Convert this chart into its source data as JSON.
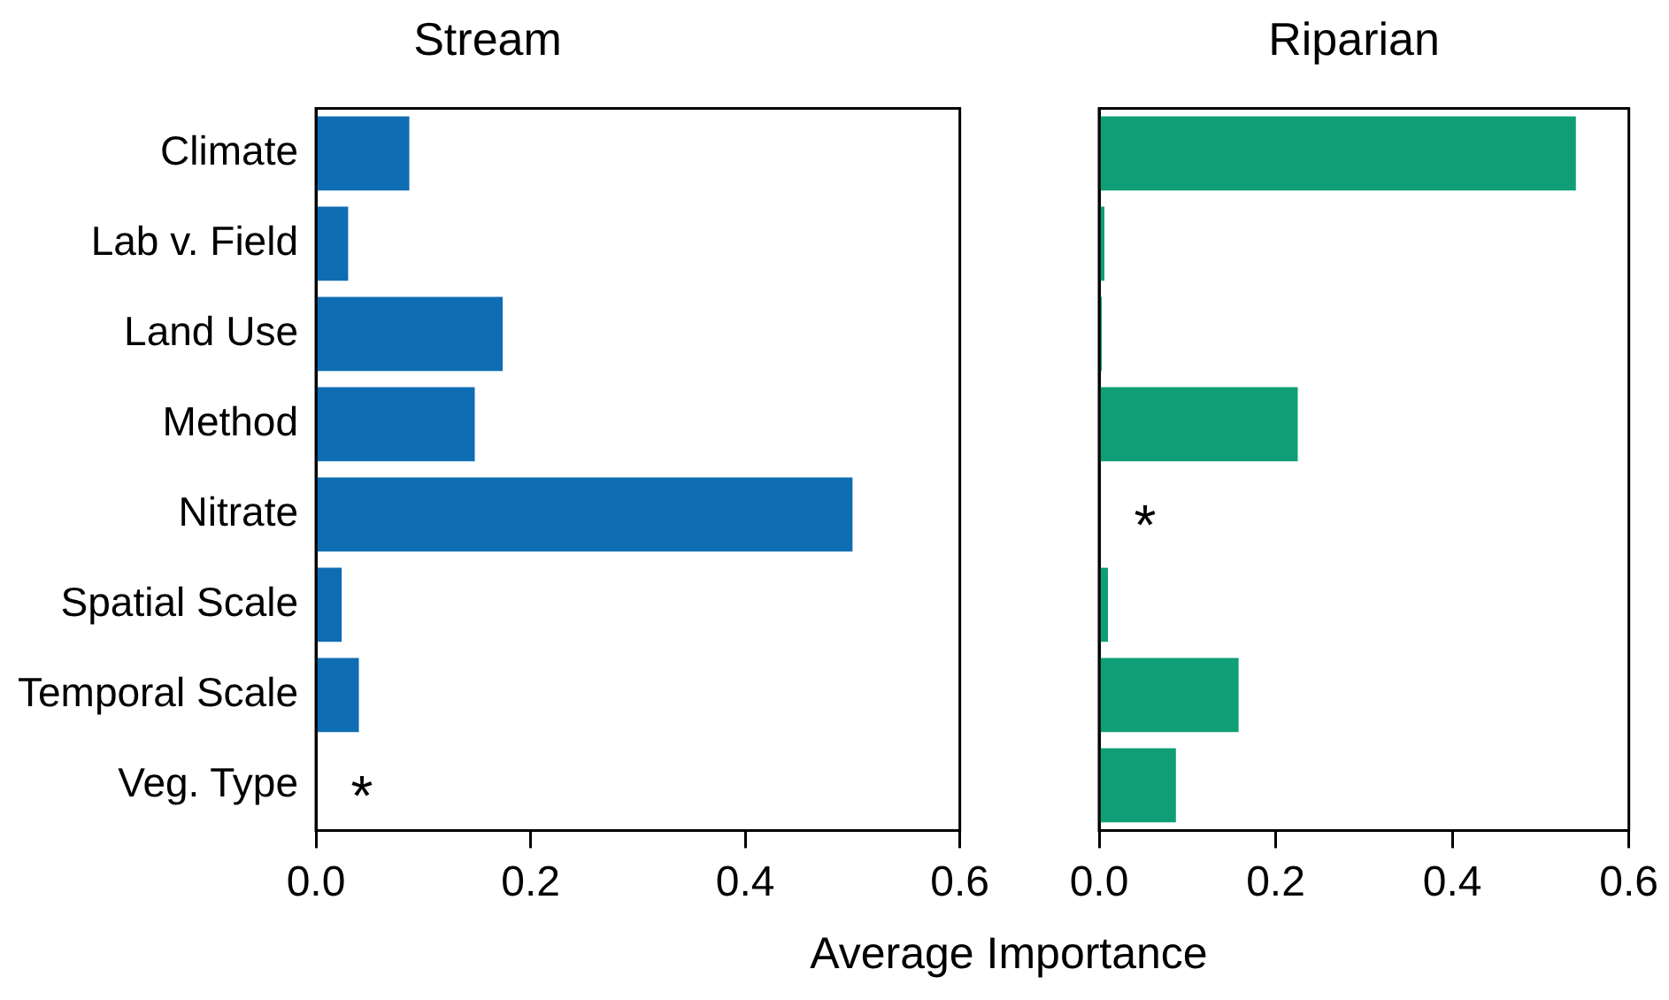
{
  "chart_data": [
    {
      "type": "bar",
      "orientation": "horizontal",
      "title": "Stream",
      "xlabel": "Average Importance",
      "categories": [
        "Climate",
        "Lab v. Field",
        "Land Use",
        "Method",
        "Nitrate",
        "Spatial Scale",
        "Temporal Scale",
        "Veg. Type"
      ],
      "series": [
        {
          "color": "#0f6db3",
          "values": [
            0.087,
            0.03,
            0.174,
            0.148,
            0.5,
            0.024,
            0.04,
            null
          ]
        }
      ],
      "xlim": [
        0,
        0.6
      ],
      "xticks": [
        {
          "value": 0,
          "label": "0.0"
        },
        0.2,
        0.4,
        0.6
      ],
      "grid": false,
      "legend": false,
      "annotations": [
        "*"
      ]
    },
    {
      "type": "bar",
      "orientation": "horizontal",
      "title": "Riparian",
      "categories": [
        "Climate",
        "Lab v. Field",
        "Land Use",
        "Method",
        "Nitrate",
        "Spatial Scale",
        "Temporal Scale",
        "Veg. Type"
      ],
      "series": [
        {
          "color": "#0f9e75",
          "values": [
            0.54,
            0.006,
            0.003,
            0.225,
            null,
            0.01,
            0.158,
            0.087
          ]
        }
      ],
      "xlim": [
        0,
        0.6
      ],
      "xticks": [
        {
          "value": 0,
          "label": "0.0"
        },
        0.2,
        0.4,
        0.6
      ],
      "grid": false,
      "legend": false,
      "tick_labels": "x",
      "annotations": [
        "*"
      ]
    }
  ]
}
